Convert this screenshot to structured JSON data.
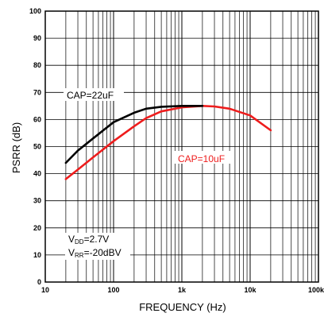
{
  "chart_data": {
    "type": "line",
    "title": "",
    "xlabel": "FREQUENCY (Hz)",
    "ylabel": "PSRR (dB)",
    "x_scale": "log",
    "xlim": [
      10,
      100000
    ],
    "ylim": [
      0,
      100
    ],
    "grid": true,
    "x_ticks": [
      10,
      100,
      1000,
      10000,
      100000
    ],
    "x_tick_labels": [
      "10",
      "100",
      "1k",
      "10k",
      "100k"
    ],
    "y_ticks": [
      0,
      10,
      20,
      30,
      40,
      50,
      60,
      70,
      80,
      90,
      100
    ],
    "y_tick_labels": [
      "0",
      "10",
      "20",
      "30",
      "40",
      "50",
      "60",
      "70",
      "80",
      "90",
      "100"
    ],
    "series": [
      {
        "name": "CAP=22uF",
        "color": "#000000",
        "x": [
          20,
          30,
          50,
          100,
          200,
          300,
          500,
          1000,
          2000
        ],
        "y": [
          44,
          48.5,
          53,
          59,
          62.5,
          64,
          64.7,
          65,
          65
        ]
      },
      {
        "name": "CAP=10uF",
        "color": "#ee1c1c",
        "x": [
          20,
          30,
          50,
          100,
          200,
          300,
          500,
          1000,
          2000,
          3000,
          5000,
          10000,
          20000
        ],
        "y": [
          38,
          41.5,
          46,
          52,
          57.5,
          60.5,
          63,
          64.5,
          65,
          64.8,
          64,
          61.5,
          56
        ]
      }
    ],
    "annotations": {
      "conditions": [
        {
          "prefix": "V",
          "sub": "DD",
          "value": "=2.7V"
        },
        {
          "prefix": "V",
          "sub": "RR",
          "value": "=-20dBV"
        }
      ]
    }
  }
}
